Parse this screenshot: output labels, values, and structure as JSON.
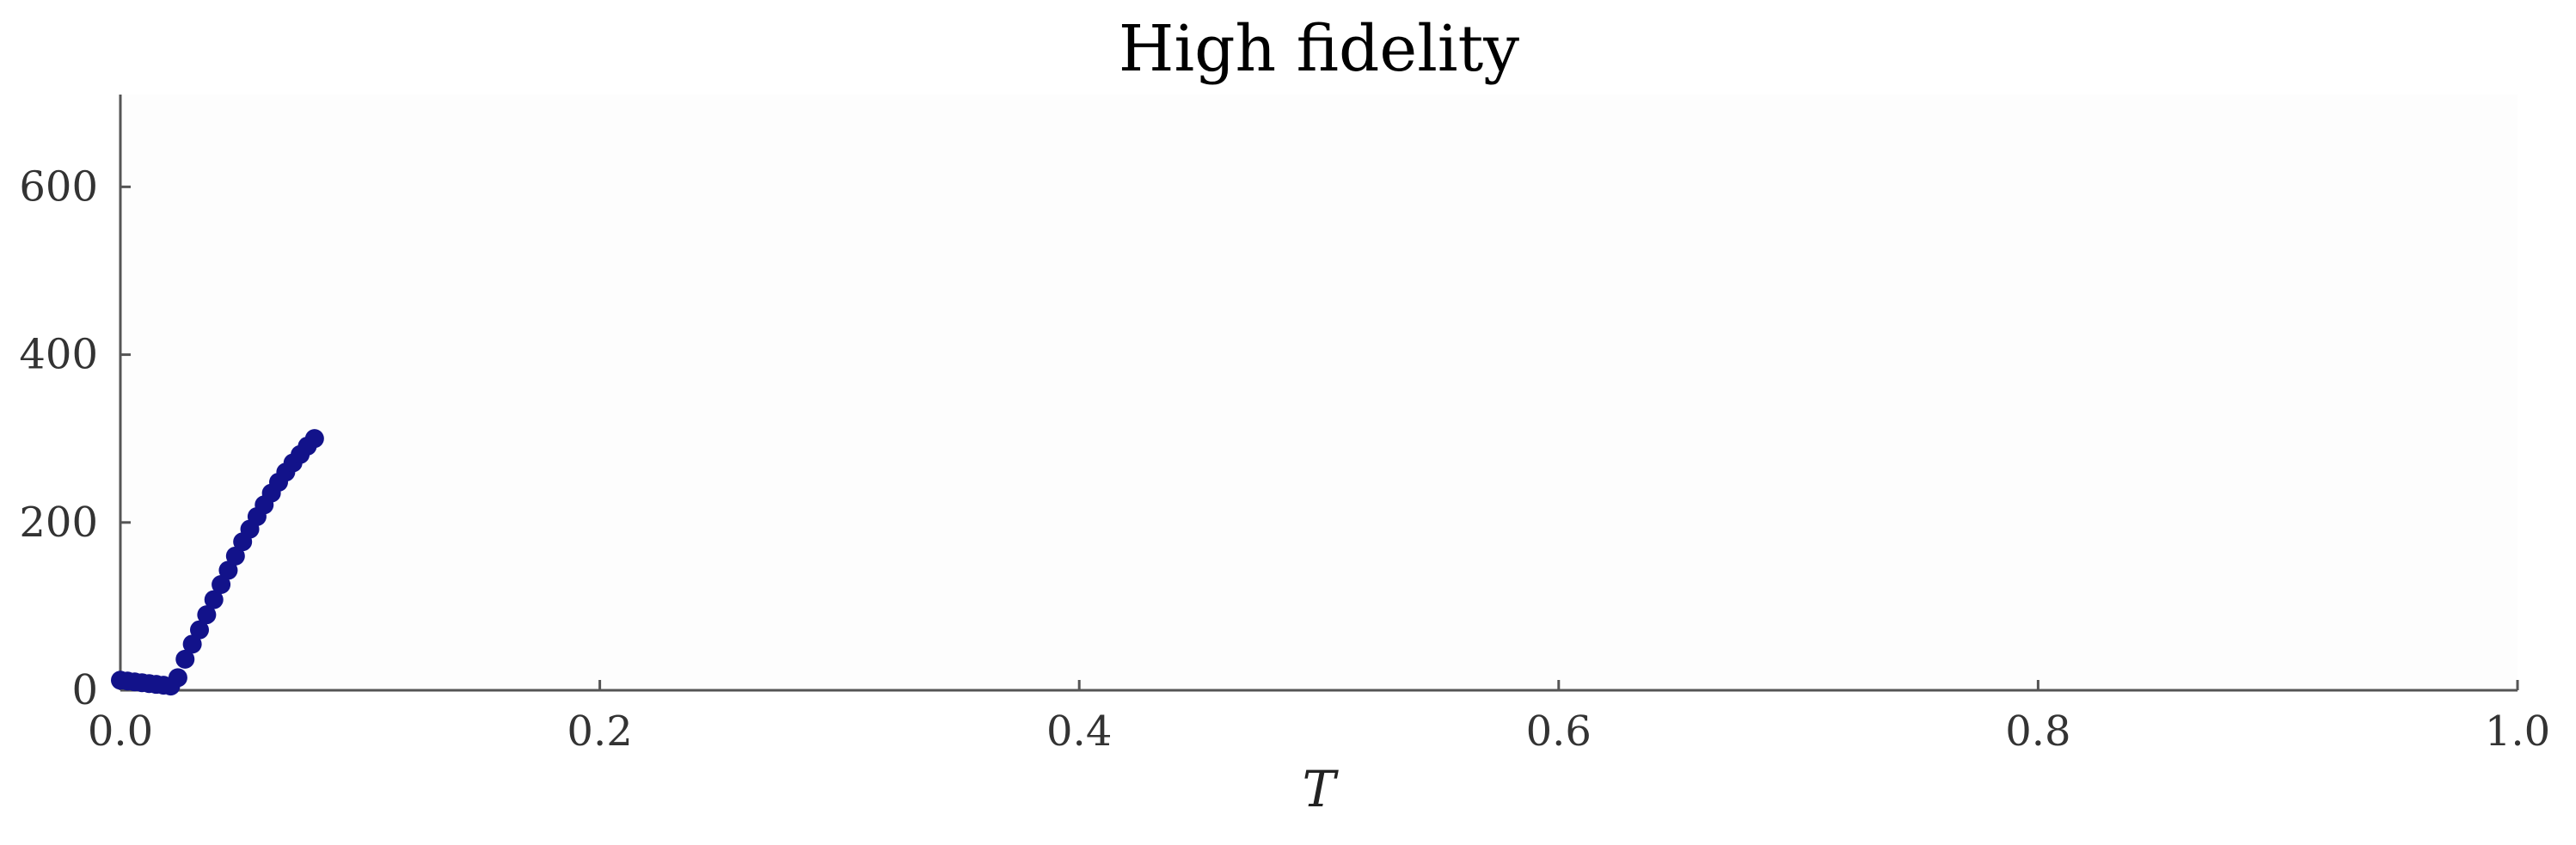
{
  "chart_data": {
    "type": "scatter",
    "title": "High fidelity",
    "xlabel": "T",
    "ylabel": "",
    "xlim": [
      0.0,
      1.0
    ],
    "ylim": [
      0,
      710
    ],
    "xticks": [
      0.0,
      0.2,
      0.4,
      0.6,
      0.8,
      1.0
    ],
    "xtick_labels": [
      "0.0",
      "0.2",
      "0.4",
      "0.6",
      "0.8",
      "1.0"
    ],
    "yticks": [
      0,
      200,
      400,
      600
    ],
    "ytick_labels": [
      "0",
      "200",
      "400",
      "600"
    ],
    "grid": false,
    "legend": "none",
    "colors": {
      "marker": "#12128a",
      "plot_bg": "#fdfdfd",
      "axis": "#555555"
    },
    "series": [
      {
        "x": [
          0.0,
          0.003,
          0.006,
          0.009,
          0.012,
          0.015,
          0.018,
          0.021,
          0.024,
          0.027,
          0.03,
          0.033,
          0.036,
          0.039,
          0.042,
          0.045,
          0.048,
          0.051,
          0.054,
          0.057,
          0.06,
          0.063,
          0.066,
          0.069,
          0.072,
          0.075,
          0.078,
          0.081
        ],
        "y": [
          12,
          11,
          10,
          9,
          8,
          7,
          6,
          5,
          15,
          37,
          55,
          72,
          90,
          108,
          126,
          143,
          160,
          177,
          192,
          207,
          221,
          235,
          248,
          260,
          271,
          281,
          291,
          300
        ]
      }
    ]
  }
}
